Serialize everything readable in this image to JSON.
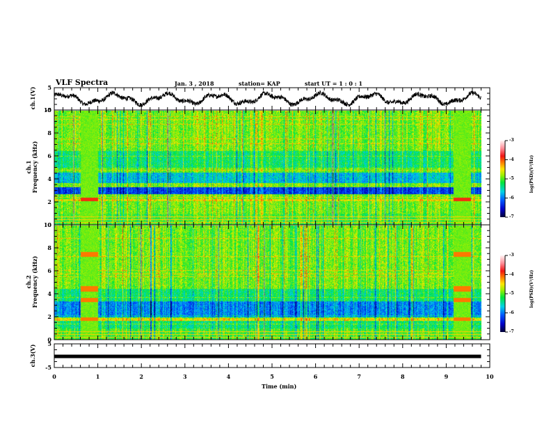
{
  "header": {
    "title": "VLF Spectra",
    "date": "Jan. 3 , 2018",
    "station": "station= KAP",
    "start_ut": "start UT =  1 : 0 : 1"
  },
  "chart_data": [
    {
      "type": "line",
      "name": "ch1-waveform",
      "ylabel": "ch.1(V)",
      "ylim": [
        -5,
        5
      ],
      "yticks": [
        "5",
        "-5"
      ],
      "xlim": [
        0,
        10
      ],
      "data_end_min": 9.8,
      "description": "noisy oscillating waveform between about -3 and 3 V"
    },
    {
      "type": "heatmap",
      "name": "ch1-spectrogram",
      "ylabel_line1": "ch.1",
      "ylabel_line2": "Frequency (kHz)",
      "ylim": [
        0,
        10
      ],
      "yticks": [
        "0",
        "2",
        "4",
        "6",
        "8",
        "10"
      ],
      "xlim": [
        0,
        10
      ],
      "data_end_min": 9.8,
      "colorbar": {
        "label": "log(PSD)(V²/Hz)",
        "range": [
          -7,
          -3
        ],
        "ticks": [
          "-3",
          "-4",
          "-5",
          "-6",
          "-7"
        ]
      },
      "features": [
        {
          "kind": "low-power band",
          "freq_khz": [
            2.7,
            3.3
          ]
        },
        {
          "kind": "low-power band",
          "freq_khz": [
            3.7,
            4.6
          ]
        },
        {
          "kind": "enhanced band",
          "freq_khz": [
            2.1,
            2.3
          ]
        },
        {
          "kind": "interference interval",
          "time_min": [
            0.6,
            1.0
          ]
        },
        {
          "kind": "interference interval",
          "time_min": [
            9.15,
            9.55
          ]
        }
      ]
    },
    {
      "type": "heatmap",
      "name": "ch2-spectrogram",
      "ylabel_line1": "ch.2",
      "ylabel_line2": "Frequency (kHz)",
      "ylim": [
        0,
        10
      ],
      "yticks": [
        "0",
        "2",
        "4",
        "6",
        "8",
        "10"
      ],
      "xlim": [
        0,
        10
      ],
      "data_end_min": 9.8,
      "colorbar": {
        "label": "log(PSD)(V²/Hz)",
        "range": [
          -7,
          -3
        ],
        "ticks": [
          "-3",
          "-4",
          "-5",
          "-6",
          "-7"
        ]
      },
      "features": [
        {
          "kind": "low-power band",
          "freq_khz": [
            2.0,
            3.4
          ]
        },
        {
          "kind": "enhanced band",
          "freq_khz": [
            1.7,
            1.9
          ]
        },
        {
          "kind": "interference interval",
          "time_min": [
            0.6,
            1.0
          ]
        },
        {
          "kind": "interference interval",
          "time_min": [
            9.15,
            9.55
          ]
        }
      ]
    },
    {
      "type": "line",
      "name": "ch3-waveform",
      "ylabel": "ch.3(V)",
      "ylim": [
        -5,
        5
      ],
      "yticks": [
        "5",
        "-5"
      ],
      "xlim": [
        0,
        10
      ],
      "data_end_min": 9.8,
      "constant_value": -0.3
    }
  ],
  "xaxis": {
    "label": "Time  (min)",
    "ticks": [
      "0",
      "1",
      "2",
      "3",
      "4",
      "5",
      "6",
      "7",
      "8",
      "9",
      "10"
    ]
  }
}
